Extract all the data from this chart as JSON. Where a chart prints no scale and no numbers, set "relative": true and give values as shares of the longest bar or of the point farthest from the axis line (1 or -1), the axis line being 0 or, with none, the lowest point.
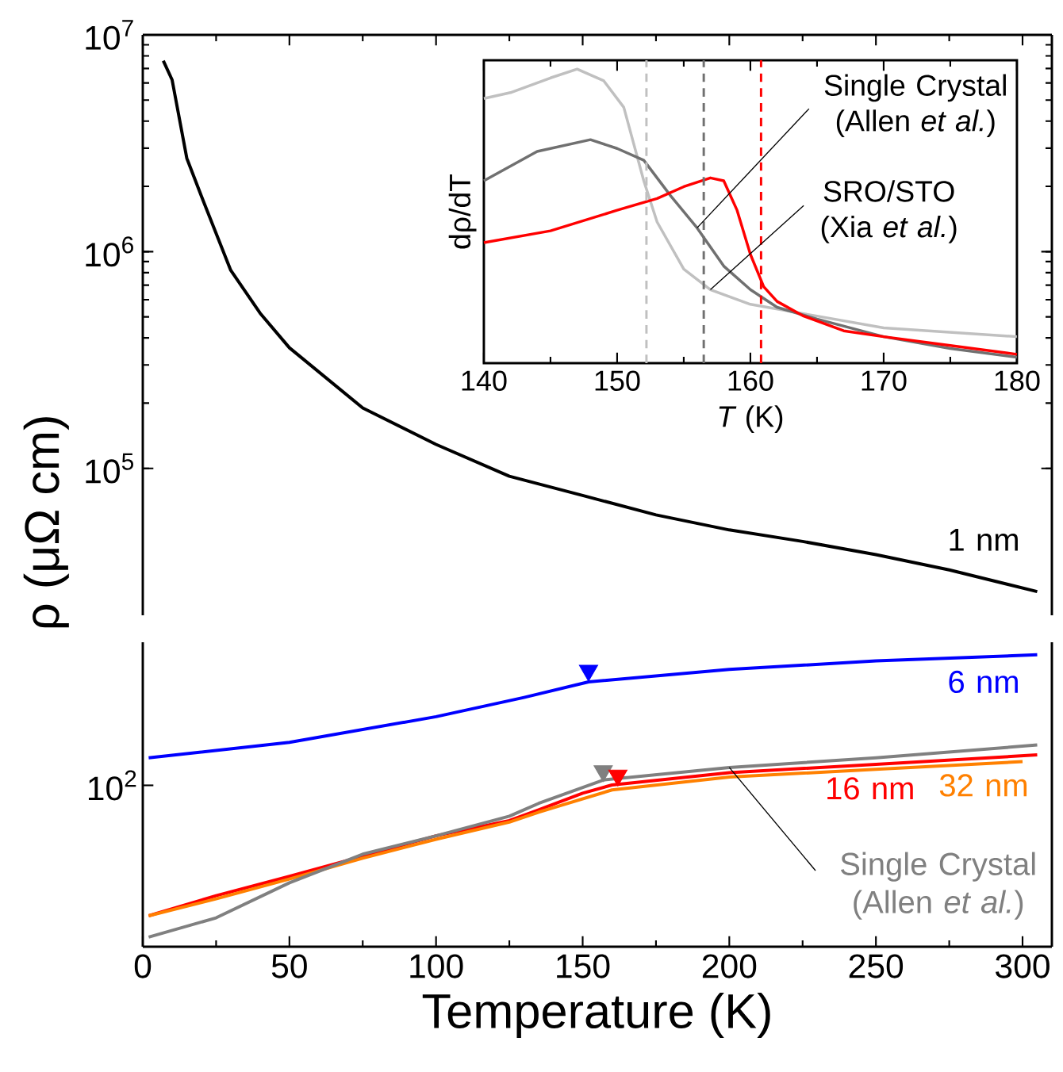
{
  "chart_data": [
    {
      "type": "line",
      "xlim": [
        0,
        310
      ],
      "xticks": [
        0,
        50,
        100,
        150,
        200,
        250,
        300
      ],
      "tick_labels": "y",
      "log": "y",
      "ylim": [
        21000,
        10000000
      ],
      "yticks": [
        {
          "value": 100000,
          "label": "10$^{5}$"
        },
        {
          "value": 1000000,
          "label": "10$^{6}$"
        },
        {
          "value": 10000000,
          "label": "10$^{7}$"
        }
      ],
      "ylabel": "ρ (μΩ cm)",
      "series": [
        {
          "name": "1 nm",
          "color": "#000000",
          "x": [
            7,
            10,
            15,
            20,
            30,
            40,
            50,
            75,
            100,
            125,
            150,
            175,
            200,
            225,
            250,
            275,
            305
          ],
          "values": [
            7600000,
            6200000,
            2700000,
            1800000,
            820000,
            520000,
            360000,
            190000,
            129000,
            92000,
            75000,
            61000,
            52000,
            46000,
            40000,
            34000,
            27000
          ]
        }
      ]
    },
    {
      "type": "line",
      "relative": true,
      "xlim": [
        0,
        310
      ],
      "xticks": [
        0,
        50,
        100,
        150,
        200,
        250,
        300
      ],
      "annotations": [
        "10$^{2}$"
      ],
      "xlabel": "Temperature (K)",
      "series": [
        {
          "name": "6 nm",
          "color": "#0000ff",
          "x": [
            2,
            50,
            100,
            130,
            152,
            200,
            250,
            305
          ],
          "values": [
            0.647,
            0.7,
            0.788,
            0.854,
            0.907,
            0.95,
            0.979,
            1
          ]
        },
        {
          "name": "16 nm",
          "color": "#ff0000",
          "x": [
            2,
            25,
            50,
            75,
            100,
            125,
            135,
            150,
            160,
            200,
            250,
            305
          ],
          "values": [
            0.106,
            0.175,
            0.241,
            0.31,
            0.38,
            0.432,
            0.469,
            0.526,
            0.554,
            0.596,
            0.625,
            0.657
          ]
        },
        {
          "name": "32 nm",
          "color": "#ff8000",
          "x": [
            2,
            25,
            50,
            75,
            100,
            125,
            135,
            160,
            200,
            250,
            300
          ],
          "values": [
            0.106,
            0.164,
            0.232,
            0.303,
            0.368,
            0.427,
            0.461,
            0.537,
            0.581,
            0.608,
            0.634
          ]
        },
        {
          "name": "Single Crystal (Allen *et al.*)",
          "color": "#808080",
          "x": [
            2,
            25,
            50,
            75,
            100,
            125,
            135,
            157,
            200,
            250,
            305
          ],
          "values": [
            0.033,
            0.099,
            0.219,
            0.317,
            0.38,
            0.447,
            0.491,
            0.571,
            0.614,
            0.647,
            0.691
          ]
        },
        {
          "type": "scatter",
          "marker": "triangle",
          "color": "#0000ff",
          "x": [
            152
          ],
          "values": [
            0.946
          ]
        },
        {
          "type": "scatter",
          "marker": "triangle",
          "color": "#808080",
          "x": [
            157
          ],
          "values": [
            0.602
          ]
        },
        {
          "type": "scatter",
          "marker": "triangle",
          "color": "#ff0000",
          "x": [
            162
          ],
          "values": [
            0.587
          ]
        }
      ]
    },
    {
      "type": "line",
      "relative": true,
      "xlim": [
        140,
        180
      ],
      "xticks": [
        140,
        150,
        160,
        170,
        180
      ],
      "xlabel": "*T* (K)",
      "ylabel": "dρ/dT",
      "ref_lines": [
        {
          "axis": "x",
          "value": 152.2,
          "color": "#c0c0c0",
          "line_style": "dashed"
        },
        {
          "axis": "x",
          "value": 156.5,
          "color": "#707070",
          "line_style": "dashed"
        },
        {
          "axis": "x",
          "value": 160.8,
          "color": "#ff0000",
          "line_style": "dashed"
        }
      ],
      "series": [
        {
          "name": "SRO/STO (Xia *et al.*)",
          "color": "#c0c0c0",
          "x": [
            140,
            142,
            145,
            147,
            149,
            150.5,
            152,
            153,
            155,
            157,
            160,
            165,
            170,
            180
          ],
          "values": [
            0.9,
            0.92,
            0.97,
            1,
            0.96,
            0.87,
            0.62,
            0.48,
            0.32,
            0.25,
            0.2,
            0.16,
            0.12,
            0.09
          ]
        },
        {
          "name": "Single Crystal (Allen *et al.*)",
          "color": "#707070",
          "x": [
            140,
            144,
            148,
            150,
            152,
            154,
            156,
            158,
            160,
            162,
            165,
            170,
            175,
            180
          ],
          "values": [
            0.62,
            0.72,
            0.76,
            0.73,
            0.69,
            0.57,
            0.46,
            0.33,
            0.25,
            0.19,
            0.15,
            0.09,
            0.05,
            0.02
          ]
        },
        {
          "color": "#ff0000",
          "x": [
            140,
            145,
            150,
            153,
            155,
            157,
            158,
            159,
            160,
            161,
            162,
            164,
            167,
            170,
            175,
            180
          ],
          "values": [
            0.41,
            0.45,
            0.52,
            0.56,
            0.6,
            0.63,
            0.62,
            0.52,
            0.37,
            0.26,
            0.21,
            0.16,
            0.11,
            0.09,
            0.06,
            0.03
          ]
        }
      ]
    }
  ]
}
